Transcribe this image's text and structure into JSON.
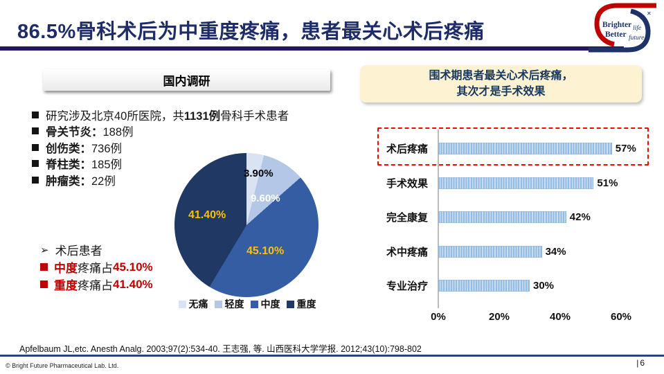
{
  "header": {
    "title": "86.5%骨科术后为中重度疼痛，患者最关心术后疼痛",
    "logo": {
      "word1": "Brighter",
      "word1_italic": "life",
      "word2": "Better",
      "word2_italic": "future",
      "sparkle": "✕",
      "red": "#c00000",
      "blue": "#1e3268"
    }
  },
  "left": {
    "header": "国内调研",
    "bullets": [
      {
        "pre": "研究涉及北京40所医院，共",
        "strong": "1131例",
        "post": "骨科手术患者"
      },
      {
        "strong": "骨关节炎：",
        "post": "188例"
      },
      {
        "strong": "创伤类：",
        "post": "736例"
      },
      {
        "strong": "脊柱类：",
        "post": "185例"
      },
      {
        "strong": "肿瘤类：",
        "post": "22例"
      }
    ],
    "conclusion": {
      "lead_bullet": "➢",
      "lead": "术后患者",
      "lines": [
        {
          "strong": "中度",
          "mid": "疼痛占",
          "value": "45.10%"
        },
        {
          "strong": "重度",
          "mid": "疼痛占",
          "value": "41.40%"
        }
      ]
    }
  },
  "right": {
    "header_line1": "围术期患者最关心术后疼痛，",
    "header_line2": "其次才是手术效果"
  },
  "chart_data": [
    {
      "type": "pie",
      "title": "骨科术后疼痛程度分布（国内调研）",
      "labels": [
        "无痛",
        "轻度",
        "中度",
        "重度"
      ],
      "values": [
        3.9,
        9.6,
        45.1,
        41.4
      ],
      "value_labels": [
        "3.90%",
        "9.60%",
        "45.10%",
        "41.40%"
      ],
      "colors": [
        "#dae3f3",
        "#b4c7e7",
        "#345da4",
        "#203864"
      ],
      "label_colors": [
        "#000000",
        "#ffffff",
        "#ffc000",
        "#ffc000"
      ],
      "start_angle_deg": 0,
      "direction": "clockwise",
      "legend_position": "bottom"
    },
    {
      "type": "bar",
      "orientation": "horizontal",
      "title": "围术期患者最关心的问题",
      "categories": [
        "术后疼痛",
        "手术效果",
        "完全康复",
        "术中疼痛",
        "专业治疗"
      ],
      "values": [
        57,
        51,
        42,
        34,
        30
      ],
      "value_labels": [
        "57%",
        "51%",
        "42%",
        "34%",
        "30%"
      ],
      "xlim": [
        0,
        60
      ],
      "x_ticks": [
        "0%",
        "20%",
        "40%",
        "60%"
      ],
      "bar_color": "#9dc3e6",
      "grid": false,
      "highlight_index": 0,
      "highlight_style": "red-dashed-box"
    }
  ],
  "footer": {
    "citation": "Apfelbaum JL,etc. Anesth Analg. 2003;97(2):534-40. 王志强, 等. 山西医科大学学报. 2012;43(10):798-802",
    "copyright": "© Bright Future Pharmaceutical Lab. Ltd.",
    "page_separator": "|",
    "page_number": "6"
  }
}
